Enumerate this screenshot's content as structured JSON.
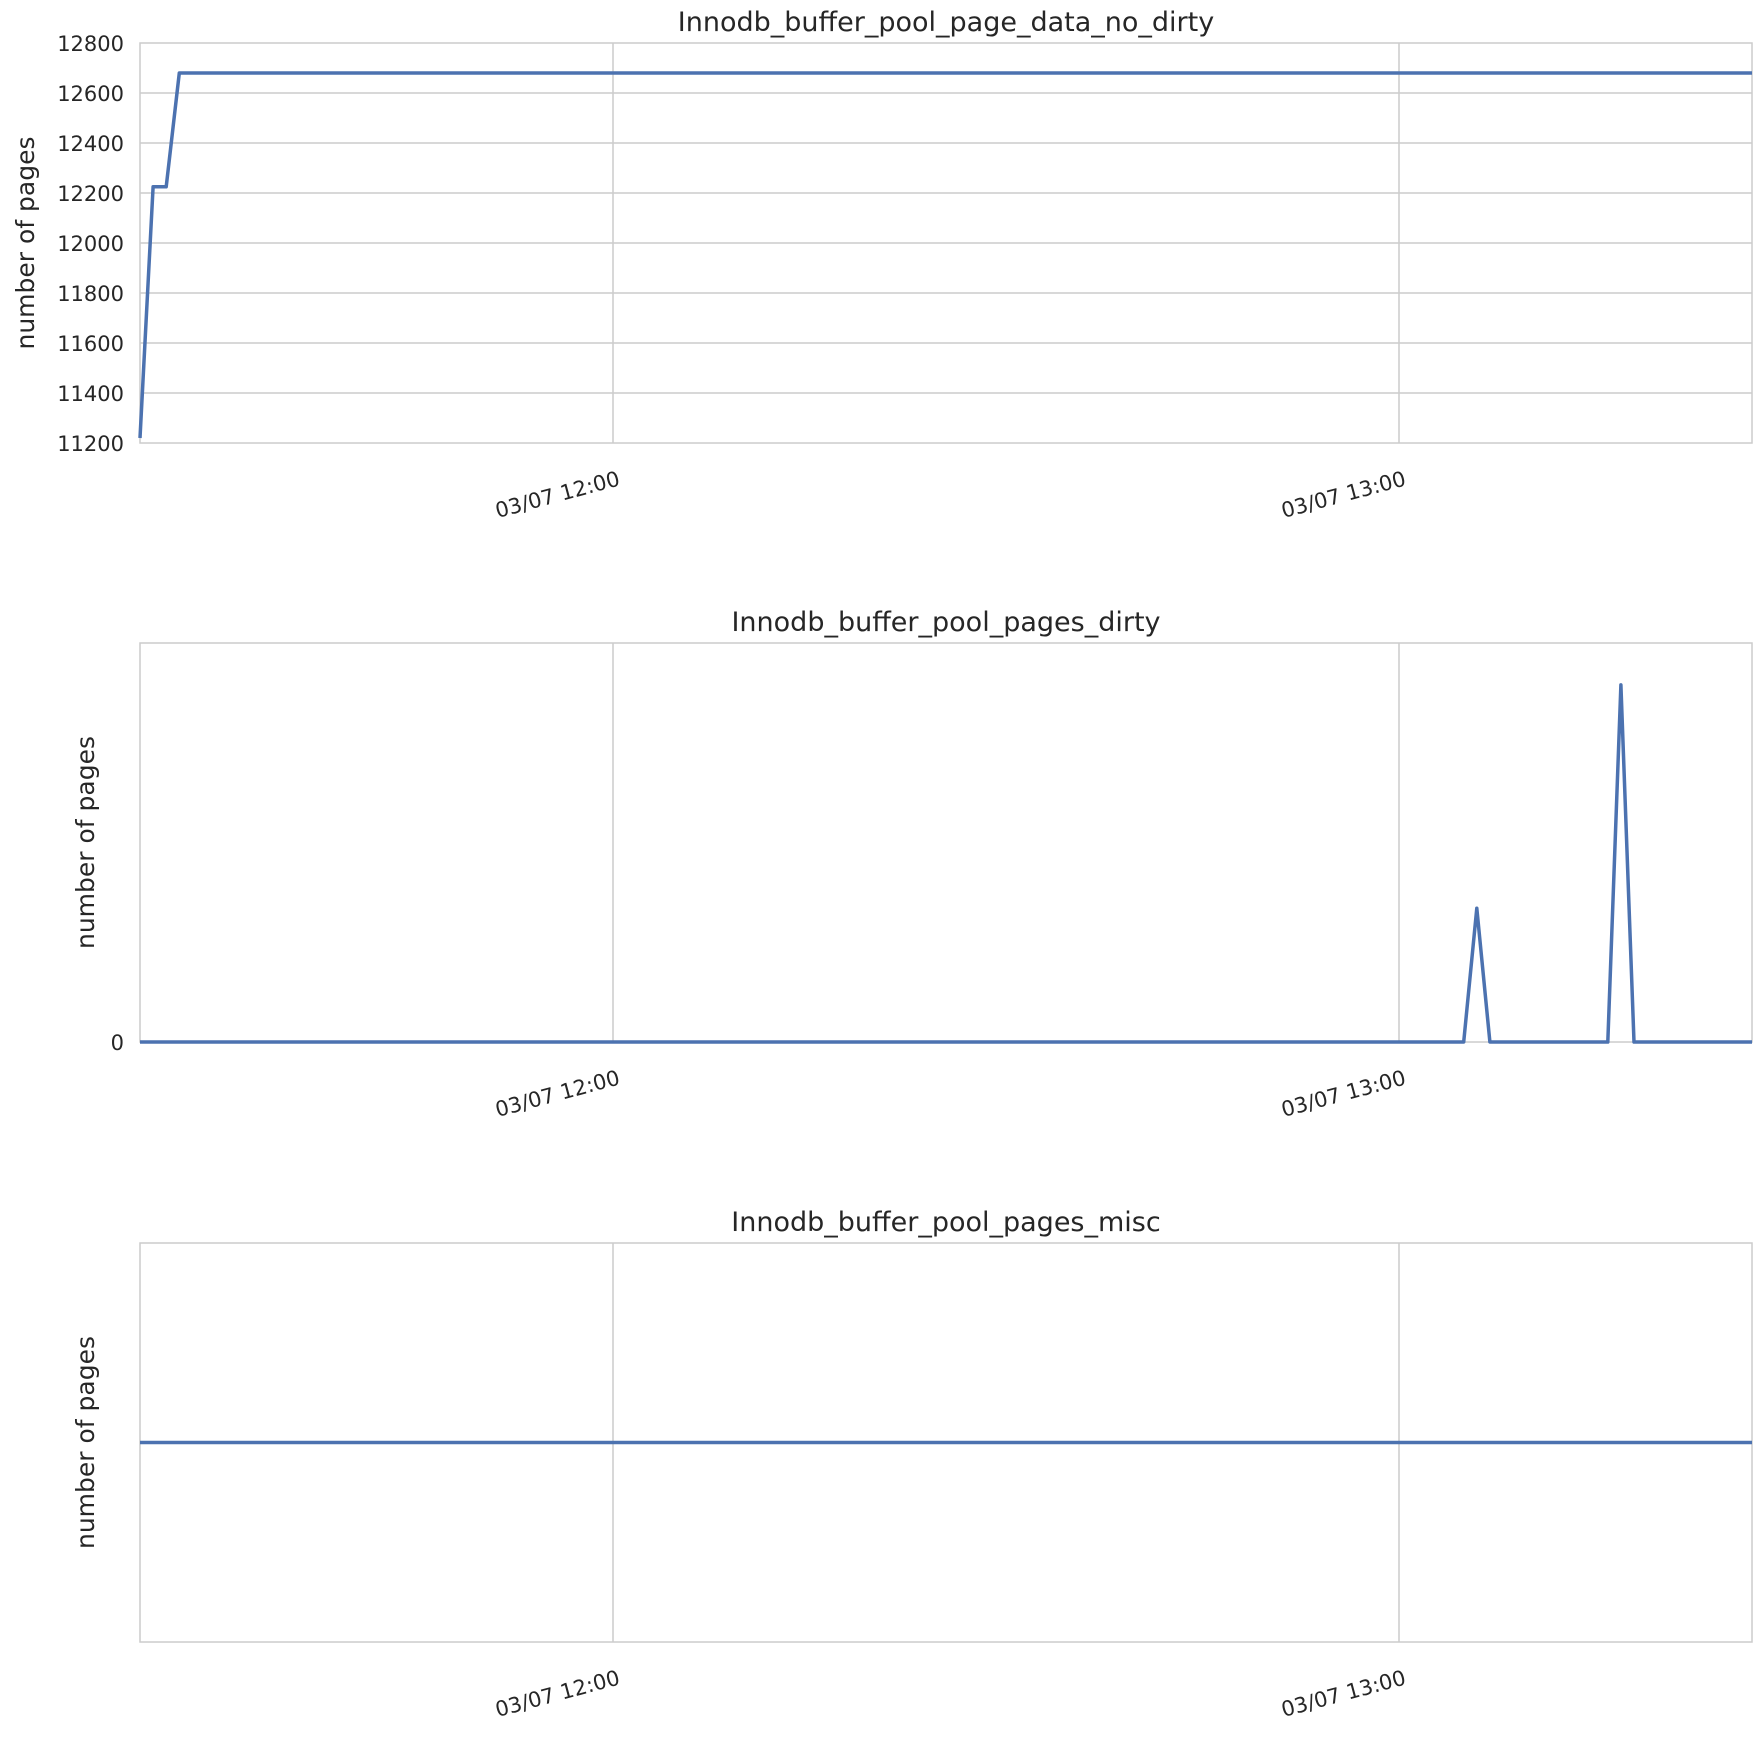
{
  "colors": {
    "series": "#4c72b0",
    "grid": "#cccccc",
    "text": "#262626"
  },
  "chart_data": [
    {
      "type": "line",
      "title": "Innodb_buffer_pool_page_data_no_dirty",
      "xlabel": "",
      "ylabel": "number of pages",
      "xlim": [
        "2024-03-07T11:24",
        "2024-03-07T13:27"
      ],
      "ylim": [
        11200,
        12800
      ],
      "yticks": [
        "12800",
        "12600",
        "12400",
        "12200",
        "12000",
        "11800",
        "11600",
        "11400",
        "11200"
      ],
      "xticks": [
        "03/07 12:00",
        "03/07 13:00"
      ],
      "grid": true,
      "series": [
        {
          "x": [
            "2024-03-07T11:24",
            "2024-03-07T11:25",
            "2024-03-07T11:26",
            "2024-03-07T11:27",
            "2024-03-07T13:27"
          ],
          "values": [
            11220,
            12225,
            12225,
            12680,
            12680
          ]
        }
      ]
    },
    {
      "type": "line",
      "title": "Innodb_buffer_pool_pages_dirty",
      "xlabel": "",
      "ylabel": "number of pages",
      "xlim": [
        "2024-03-07T11:24",
        "2024-03-07T13:27"
      ],
      "ylim": [
        0,
        20
      ],
      "yticks": [
        "0"
      ],
      "xticks": [
        "03/07 12:00",
        "03/07 13:00"
      ],
      "grid": true,
      "series": [
        {
          "x": [
            "2024-03-07T11:24",
            "2024-03-07T13:05",
            "2024-03-07T13:06",
            "2024-03-07T13:07",
            "2024-03-07T13:16",
            "2024-03-07T13:17",
            "2024-03-07T13:18",
            "2024-03-07T13:27"
          ],
          "values": [
            0,
            0,
            6.7,
            0,
            0,
            17.9,
            0,
            0
          ]
        }
      ]
    },
    {
      "type": "line",
      "title": "Innodb_buffer_pool_pages_misc",
      "xlabel": "",
      "ylabel": "number of pages",
      "xlim": [
        "2024-03-07T11:24",
        "2024-03-07T13:27"
      ],
      "ylim": [
        -1,
        1
      ],
      "yticks": [],
      "xticks": [
        "03/07 12:00",
        "03/07 13:00"
      ],
      "grid": true,
      "series": [
        {
          "x": [
            "2024-03-07T11:24",
            "2024-03-07T13:27"
          ],
          "values": [
            0,
            0
          ]
        }
      ]
    }
  ]
}
